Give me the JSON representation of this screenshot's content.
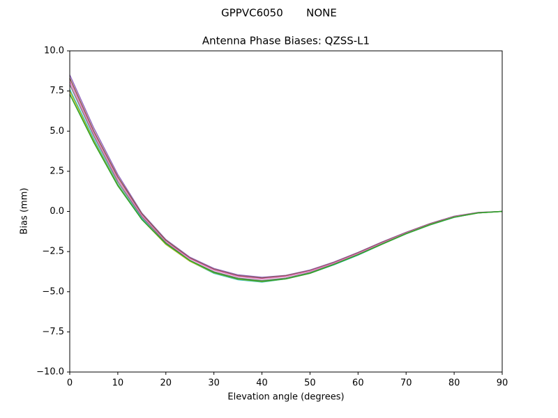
{
  "chart_data": {
    "type": "line",
    "suptitle": "GPPVC6050       NONE",
    "title": "Antenna Phase Biases: QZSS-L1",
    "xlabel": "Elevation angle (degrees)",
    "ylabel": "Bias (mm)",
    "x": [
      0,
      5,
      10,
      15,
      20,
      25,
      30,
      35,
      40,
      45,
      50,
      55,
      60,
      65,
      70,
      75,
      80,
      85,
      90
    ],
    "series": [
      {
        "color": "#9467bd",
        "values": [
          8.5,
          5.2,
          2.3,
          -0.1,
          -1.75,
          -2.85,
          -3.55,
          -3.95,
          -4.1,
          -3.98,
          -3.65,
          -3.15,
          -2.55,
          -1.9,
          -1.3,
          -0.75,
          -0.3,
          -0.06,
          0
        ]
      },
      {
        "color": "#8c564b",
        "values": [
          8.3,
          5.0,
          2.15,
          -0.15,
          -1.8,
          -2.9,
          -3.6,
          -4.0,
          -4.15,
          -4.0,
          -3.68,
          -3.18,
          -2.58,
          -1.93,
          -1.32,
          -0.77,
          -0.32,
          -0.07,
          0
        ]
      },
      {
        "color": "#e377c2",
        "values": [
          8.1,
          4.85,
          2.0,
          -0.25,
          -1.9,
          -2.95,
          -3.65,
          -4.05,
          -4.2,
          -4.05,
          -3.72,
          -3.22,
          -2.62,
          -1.97,
          -1.35,
          -0.8,
          -0.34,
          -0.08,
          0
        ]
      },
      {
        "color": "#7f7f7f",
        "values": [
          7.9,
          4.7,
          1.85,
          -0.35,
          -1.95,
          -3.05,
          -3.75,
          -4.15,
          -4.3,
          -4.15,
          -3.8,
          -3.28,
          -2.68,
          -2.02,
          -1.38,
          -0.82,
          -0.36,
          -0.09,
          0
        ]
      },
      {
        "color": "#17becf",
        "values": [
          7.6,
          4.5,
          1.7,
          -0.45,
          -2.05,
          -3.1,
          -3.85,
          -4.25,
          -4.4,
          -4.2,
          -3.85,
          -3.32,
          -2.72,
          -2.05,
          -1.4,
          -0.84,
          -0.37,
          -0.09,
          0
        ]
      },
      {
        "color": "#bcbd22",
        "values": [
          7.5,
          4.4,
          1.65,
          -0.5,
          -2.05,
          -3.1,
          -3.82,
          -4.22,
          -4.37,
          -4.2,
          -3.85,
          -3.3,
          -2.7,
          -2.04,
          -1.39,
          -0.83,
          -0.36,
          -0.09,
          0
        ]
      },
      {
        "color": "#2ca02c",
        "values": [
          7.3,
          4.3,
          1.6,
          -0.5,
          -2.0,
          -3.05,
          -3.8,
          -4.2,
          -4.35,
          -4.2,
          -3.85,
          -3.3,
          -2.7,
          -2.03,
          -1.38,
          -0.82,
          -0.36,
          -0.09,
          0
        ]
      }
    ],
    "xlim": [
      0,
      90
    ],
    "xticks": [
      0,
      10,
      20,
      30,
      40,
      50,
      60,
      70,
      80,
      90
    ],
    "ylim": [
      -10,
      10
    ],
    "yticks": [
      {
        "value": -10,
        "label": "−10.0"
      },
      {
        "value": -7.5,
        "label": "−7.5"
      },
      {
        "value": -5,
        "label": "−5.0"
      },
      {
        "value": -2.5,
        "label": "−2.5"
      },
      {
        "value": 0,
        "label": "0.0"
      },
      {
        "value": 2.5,
        "label": "2.5"
      },
      {
        "value": 5,
        "label": "5.0"
      },
      {
        "value": 7.5,
        "label": "7.5"
      },
      {
        "value": 10,
        "label": "10.0"
      }
    ],
    "grid": false
  }
}
